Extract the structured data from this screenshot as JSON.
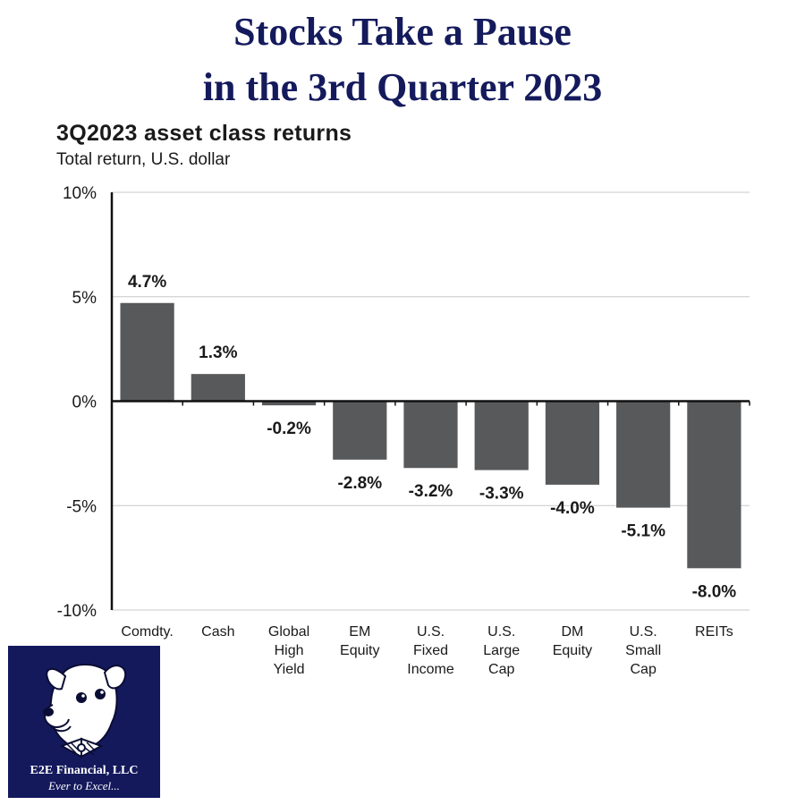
{
  "headline": {
    "line1": "Stocks Take a Pause",
    "line2": "in the 3rd Quarter 2023"
  },
  "logo": {
    "name": "E2E Financial, LLC",
    "tagline": "Ever to Excel...",
    "icon": "dog-with-bowtie-icon"
  },
  "colors": {
    "headline": "#141a5c",
    "bar": "#58595b",
    "logo_bg": "#14195c"
  },
  "chart_data": {
    "type": "bar",
    "title": "3Q2023 asset class returns",
    "subtitle": "Total return, U.S. dollar",
    "categories": [
      [
        "Comdty."
      ],
      [
        "Cash"
      ],
      [
        "Global",
        "High",
        "Yield"
      ],
      [
        "EM",
        "Equity"
      ],
      [
        "U.S.",
        "Fixed",
        "Income"
      ],
      [
        "U.S.",
        "Large",
        "Cap"
      ],
      [
        "DM",
        "Equity"
      ],
      [
        "U.S.",
        "Small",
        "Cap"
      ],
      [
        "REITs"
      ]
    ],
    "values": [
      4.7,
      1.3,
      -0.2,
      -2.8,
      -3.2,
      -3.3,
      -4.0,
      -5.1,
      -8.0
    ],
    "data_labels": [
      "4.7%",
      "1.3%",
      "-0.2%",
      "-2.8%",
      "-3.2%",
      "-3.3%",
      "-4.0%",
      "-5.1%",
      "-8.0%"
    ],
    "ylim": [
      -10,
      10
    ],
    "yticks": [
      10,
      5,
      0,
      -5,
      -10
    ],
    "ytick_labels": [
      "10%",
      "5%",
      "0%",
      "-5%",
      "-10%"
    ],
    "grid": true,
    "xlabel": "",
    "ylabel": ""
  }
}
